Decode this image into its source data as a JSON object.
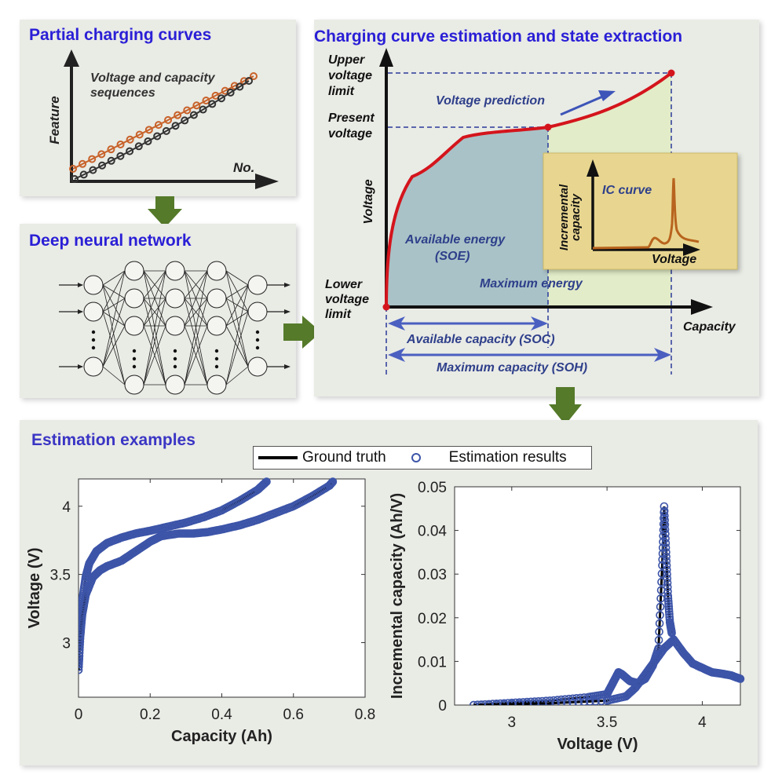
{
  "colors": {
    "title_blue": "#2a1fd6",
    "panel_bg": "#e9ebe5",
    "arrow_green": "#557a2a",
    "curve_red": "#d4141c",
    "soe_fill": "#a9c2c7",
    "max_energy_fill": "#e2ecc8",
    "ic_box": "#e8d690",
    "ic_curve": "#b8641e",
    "dim_blue": "#4a5fc0",
    "estimation_blue": "#3d55a8"
  },
  "panels": {
    "partial": {
      "title": "Partial charging curves",
      "y_axis": "Feature",
      "x_axis": "No.",
      "annotation_line1": "Voltage and capacity",
      "annotation_line2": "sequences",
      "series": [
        {
          "name": "voltage-sequence",
          "color": "#c8622a",
          "points": 20
        },
        {
          "name": "capacity-sequence",
          "color": "#333333",
          "points": 20
        }
      ]
    },
    "dnn": {
      "title": "Deep neural network",
      "layers": [
        {
          "nodes": 3,
          "ellipsis": true
        },
        {
          "nodes": 4,
          "ellipsis": true
        },
        {
          "nodes": 4,
          "ellipsis": true
        },
        {
          "nodes": 4,
          "ellipsis": true
        },
        {
          "nodes": 3,
          "ellipsis": true
        }
      ]
    },
    "estimation": {
      "title": "Charging curve estimation and state extraction",
      "upper_limit": [
        "Upper",
        "voltage",
        "limit"
      ],
      "present_voltage": [
        "Present",
        "voltage"
      ],
      "lower_limit": [
        "Lower",
        "voltage",
        "limit"
      ],
      "y_axis": "Voltage",
      "x_axis": "Capacity",
      "voltage_prediction": "Voltage prediction",
      "available_energy": "Available  energy",
      "soe": "(SOE)",
      "maximum_energy": "Maximum energy",
      "available_capacity": "Available  capacity  (SOC)",
      "maximum_capacity": "Maximum  capacity  (SOH)",
      "inset": {
        "y_axis_1": "Incremental",
        "y_axis_2": "capacity",
        "label": "IC curve",
        "x_axis": "Voltage"
      }
    },
    "examples": {
      "title": "Estimation examples",
      "legend": {
        "ground_truth": "Ground truth",
        "estimation": "Estimation results"
      }
    }
  },
  "chart_data": [
    {
      "type": "scatter",
      "title": "",
      "xlabel": "Capacity (Ah)",
      "ylabel": "Voltage (V)",
      "xlim": [
        0,
        0.8
      ],
      "ylim": [
        2.6,
        4.2
      ],
      "xticks": [
        "0",
        "0.2",
        "0.4",
        "0.6",
        "0.8"
      ],
      "yticks": [
        "3",
        "3.5",
        "4"
      ],
      "xtick_values": [
        0,
        0.2,
        0.4,
        0.6,
        0.8
      ],
      "ytick_values": [
        3,
        3.5,
        4
      ],
      "series": [
        {
          "name": "Curve A (ground truth + estimation)",
          "x": [
            0,
            0.005,
            0.01,
            0.02,
            0.03,
            0.05,
            0.08,
            0.12,
            0.16,
            0.2,
            0.25,
            0.3,
            0.35,
            0.4,
            0.45,
            0.5,
            0.525
          ],
          "y": [
            2.8,
            3.1,
            3.3,
            3.48,
            3.58,
            3.67,
            3.73,
            3.77,
            3.8,
            3.82,
            3.85,
            3.88,
            3.92,
            3.97,
            4.04,
            4.12,
            4.18
          ]
        },
        {
          "name": "Curve B (ground truth + estimation)",
          "x": [
            0,
            0.005,
            0.01,
            0.02,
            0.04,
            0.06,
            0.08,
            0.12,
            0.16,
            0.2,
            0.23,
            0.28,
            0.32,
            0.36,
            0.4,
            0.45,
            0.5,
            0.55,
            0.6,
            0.65,
            0.7,
            0.71
          ],
          "y": [
            2.8,
            3.05,
            3.2,
            3.35,
            3.48,
            3.53,
            3.56,
            3.6,
            3.67,
            3.74,
            3.78,
            3.8,
            3.8,
            3.81,
            3.83,
            3.86,
            3.9,
            3.95,
            4.0,
            4.07,
            4.15,
            4.18
          ]
        }
      ]
    },
    {
      "type": "scatter",
      "title": "",
      "xlabel": "Voltage (V)",
      "ylabel": "Incremental capacity (Ah/V)",
      "xlim": [
        2.7,
        4.2
      ],
      "ylim": [
        0,
        0.05
      ],
      "xticks": [
        "3",
        "3.5",
        "4"
      ],
      "yticks": [
        "0",
        "0.01",
        "0.02",
        "0.03",
        "0.04",
        "0.05"
      ],
      "xtick_values": [
        3,
        3.5,
        4
      ],
      "ytick_values": [
        0,
        0.01,
        0.02,
        0.03,
        0.04,
        0.05
      ],
      "series": [
        {
          "name": "IC curve A",
          "x": [
            2.8,
            3.0,
            3.2,
            3.4,
            3.5,
            3.53,
            3.56,
            3.58,
            3.62,
            3.66,
            3.7,
            3.74,
            3.77,
            3.79,
            3.8,
            3.81,
            3.82,
            3.83,
            3.84
          ],
          "y": [
            0,
            0.0005,
            0.001,
            0.0018,
            0.0025,
            0.005,
            0.0075,
            0.007,
            0.0055,
            0.005,
            0.006,
            0.009,
            0.013,
            0.032,
            0.0455,
            0.035,
            0.025,
            0.019,
            0.0165
          ]
        },
        {
          "name": "IC curve B",
          "x": [
            2.8,
            3.2,
            3.5,
            3.6,
            3.65,
            3.7,
            3.75,
            3.8,
            3.85,
            3.9,
            3.95,
            4.0,
            4.05,
            4.1,
            4.15,
            4.2
          ],
          "y": [
            0,
            0.0004,
            0.001,
            0.002,
            0.004,
            0.007,
            0.01,
            0.013,
            0.015,
            0.012,
            0.0095,
            0.0085,
            0.0075,
            0.0072,
            0.0068,
            0.006
          ]
        }
      ]
    }
  ]
}
